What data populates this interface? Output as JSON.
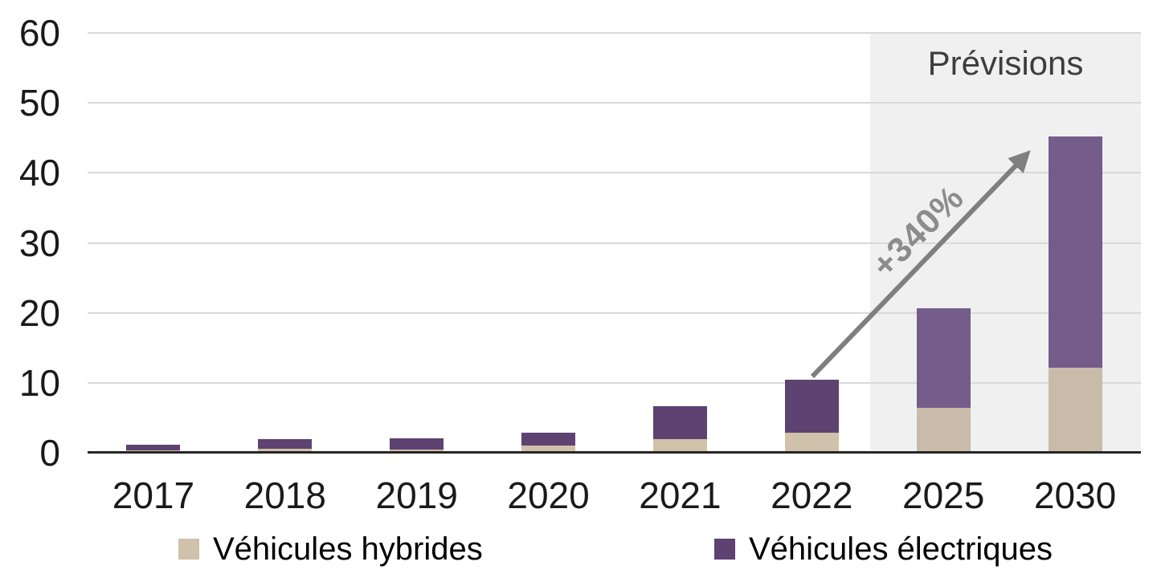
{
  "chart_data": {
    "type": "bar",
    "stacked": true,
    "categories": [
      "2017",
      "2018",
      "2019",
      "2020",
      "2021",
      "2022",
      "2025",
      "2030"
    ],
    "series": [
      {
        "name": "Véhicules hybrides",
        "color": "#D0C1AA",
        "forecast_color": "#C8BBAA",
        "values": [
          0.3,
          0.6,
          0.5,
          1.0,
          2.0,
          2.9,
          6.4,
          12.2
        ]
      },
      {
        "name": "Véhicules électriques",
        "color": "#5E4272",
        "forecast_color": "#745C8B",
        "values": [
          0.8,
          1.3,
          1.6,
          1.9,
          4.7,
          7.5,
          14.3,
          33.0
        ]
      }
    ],
    "ylim": [
      0,
      60
    ],
    "yticks": [
      0,
      10,
      20,
      30,
      40,
      50,
      60
    ],
    "xlabel": "",
    "ylabel": "",
    "grid": true,
    "legend_position": "bottom",
    "forecast_region": {
      "label": "Prévisions",
      "categories": [
        "2025",
        "2030"
      ],
      "fill": "#F0F0F0"
    },
    "annotation": {
      "label": "+340%",
      "text_color": "#8C8C8C",
      "arrow_color": "#7F7F7F",
      "from_category": "2022",
      "to_category": "2030"
    }
  },
  "colors": {
    "gridline": "#D9D9D9",
    "axis": "#262626",
    "tick_text": "#1A1A1A"
  }
}
